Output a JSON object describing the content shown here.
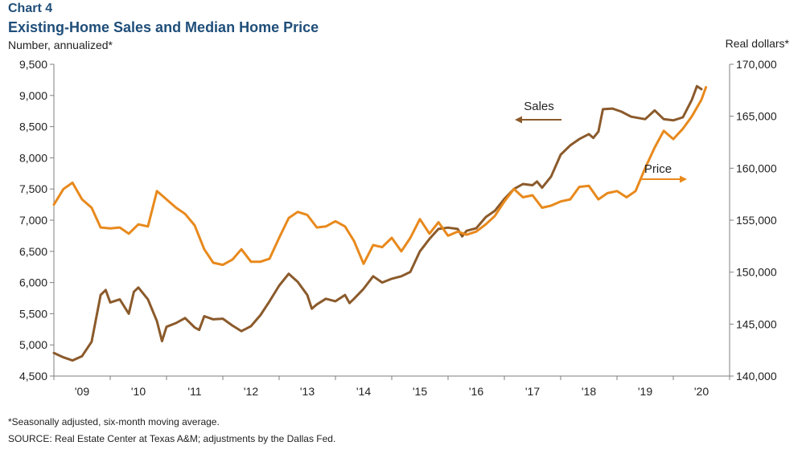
{
  "header": {
    "label": "Chart 4",
    "title": "Existing-Home Sales and Median Home Price"
  },
  "footnote": "*Seasonally adjusted, six-month moving average.",
  "source": "SOURCE: Real Estate Center at Texas A&M; adjustments by the Dallas Fed.",
  "colors": {
    "sales": "#8b5a2b",
    "price": "#e8891c",
    "axis": "#7f7f7f"
  },
  "chart_data": {
    "type": "line",
    "title": "Existing-Home Sales and Median Home Price",
    "y_left_label": "Number, annualized*",
    "y_right_label": "Real dollars*",
    "y_left_range": [
      4500,
      9500
    ],
    "y_left_ticks": [
      4500,
      5000,
      5500,
      6000,
      6500,
      7000,
      7500,
      8000,
      8500,
      9000,
      9500
    ],
    "y_left_tick_labels": [
      "4,500",
      "5,000",
      "5,500",
      "6,000",
      "6,500",
      "7,000",
      "7,500",
      "8,000",
      "8,500",
      "9,000",
      "9,500"
    ],
    "y_right_range": [
      140000,
      170000
    ],
    "y_right_ticks": [
      140000,
      145000,
      150000,
      155000,
      160000,
      165000,
      170000
    ],
    "y_right_tick_labels": [
      "140,000",
      "145,000",
      "150,000",
      "155,000",
      "160,000",
      "165,000",
      "170,000"
    ],
    "x_range": [
      2008.5,
      2020.5
    ],
    "x_tick_labels": [
      "'09",
      "'10",
      "'11",
      "'12",
      "'13",
      "'14",
      "'15",
      "'16",
      "'17",
      "'18",
      "'19",
      "'20"
    ],
    "grid": false,
    "series": [
      {
        "name": "Sales",
        "axis": "left",
        "annotation": "Sales",
        "points": [
          [
            2008.5,
            4870
          ],
          [
            2008.67,
            4800
          ],
          [
            2008.83,
            4750
          ],
          [
            2009.0,
            4820
          ],
          [
            2009.17,
            5050
          ],
          [
            2009.33,
            5800
          ],
          [
            2009.42,
            5880
          ],
          [
            2009.5,
            5680
          ],
          [
            2009.67,
            5730
          ],
          [
            2009.83,
            5500
          ],
          [
            2009.92,
            5850
          ],
          [
            2010.0,
            5920
          ],
          [
            2010.17,
            5730
          ],
          [
            2010.33,
            5380
          ],
          [
            2010.42,
            5060
          ],
          [
            2010.5,
            5290
          ],
          [
            2010.67,
            5350
          ],
          [
            2010.83,
            5430
          ],
          [
            2011.0,
            5280
          ],
          [
            2011.08,
            5240
          ],
          [
            2011.17,
            5460
          ],
          [
            2011.33,
            5410
          ],
          [
            2011.5,
            5420
          ],
          [
            2011.67,
            5310
          ],
          [
            2011.83,
            5220
          ],
          [
            2012.0,
            5300
          ],
          [
            2012.17,
            5480
          ],
          [
            2012.33,
            5700
          ],
          [
            2012.5,
            5950
          ],
          [
            2012.67,
            6140
          ],
          [
            2012.83,
            6010
          ],
          [
            2013.0,
            5800
          ],
          [
            2013.08,
            5580
          ],
          [
            2013.17,
            5650
          ],
          [
            2013.33,
            5740
          ],
          [
            2013.5,
            5700
          ],
          [
            2013.67,
            5800
          ],
          [
            2013.75,
            5670
          ],
          [
            2013.83,
            5740
          ],
          [
            2014.0,
            5900
          ],
          [
            2014.17,
            6100
          ],
          [
            2014.33,
            6000
          ],
          [
            2014.5,
            6060
          ],
          [
            2014.67,
            6100
          ],
          [
            2014.83,
            6170
          ],
          [
            2015.0,
            6500
          ],
          [
            2015.17,
            6700
          ],
          [
            2015.33,
            6860
          ],
          [
            2015.5,
            6880
          ],
          [
            2015.67,
            6860
          ],
          [
            2015.75,
            6740
          ],
          [
            2015.83,
            6830
          ],
          [
            2016.0,
            6870
          ],
          [
            2016.17,
            7050
          ],
          [
            2016.33,
            7150
          ],
          [
            2016.5,
            7340
          ],
          [
            2016.67,
            7500
          ],
          [
            2016.83,
            7580
          ],
          [
            2017.0,
            7560
          ],
          [
            2017.08,
            7620
          ],
          [
            2017.17,
            7520
          ],
          [
            2017.33,
            7700
          ],
          [
            2017.5,
            8050
          ],
          [
            2017.67,
            8200
          ],
          [
            2017.83,
            8300
          ],
          [
            2018.0,
            8380
          ],
          [
            2018.08,
            8320
          ],
          [
            2018.17,
            8420
          ],
          [
            2018.25,
            8780
          ],
          [
            2018.42,
            8790
          ],
          [
            2018.58,
            8740
          ],
          [
            2018.75,
            8660
          ],
          [
            2019.0,
            8620
          ],
          [
            2019.17,
            8760
          ],
          [
            2019.33,
            8620
          ],
          [
            2019.5,
            8600
          ],
          [
            2019.67,
            8650
          ],
          [
            2019.83,
            8930
          ],
          [
            2019.92,
            9150
          ],
          [
            2020.0,
            9100
          ]
        ]
      },
      {
        "name": "Price",
        "axis": "right",
        "annotation": "Price",
        "points": [
          [
            2008.5,
            156500
          ],
          [
            2008.67,
            158000
          ],
          [
            2008.83,
            158600
          ],
          [
            2009.0,
            157000
          ],
          [
            2009.17,
            156200
          ],
          [
            2009.33,
            154300
          ],
          [
            2009.5,
            154200
          ],
          [
            2009.67,
            154300
          ],
          [
            2009.83,
            153700
          ],
          [
            2010.0,
            154600
          ],
          [
            2010.17,
            154400
          ],
          [
            2010.33,
            157800
          ],
          [
            2010.5,
            157000
          ],
          [
            2010.67,
            156200
          ],
          [
            2010.83,
            155600
          ],
          [
            2011.0,
            154500
          ],
          [
            2011.17,
            152200
          ],
          [
            2011.33,
            150900
          ],
          [
            2011.5,
            150700
          ],
          [
            2011.67,
            151200
          ],
          [
            2011.83,
            152200
          ],
          [
            2012.0,
            151000
          ],
          [
            2012.17,
            151000
          ],
          [
            2012.33,
            151300
          ],
          [
            2012.5,
            153300
          ],
          [
            2012.67,
            155200
          ],
          [
            2012.83,
            155800
          ],
          [
            2013.0,
            155500
          ],
          [
            2013.17,
            154300
          ],
          [
            2013.33,
            154400
          ],
          [
            2013.5,
            154900
          ],
          [
            2013.67,
            154400
          ],
          [
            2013.83,
            153000
          ],
          [
            2014.0,
            150800
          ],
          [
            2014.17,
            152600
          ],
          [
            2014.33,
            152400
          ],
          [
            2014.5,
            153300
          ],
          [
            2014.67,
            152000
          ],
          [
            2014.83,
            153300
          ],
          [
            2015.0,
            155100
          ],
          [
            2015.17,
            153700
          ],
          [
            2015.33,
            154800
          ],
          [
            2015.5,
            153500
          ],
          [
            2015.67,
            153900
          ],
          [
            2015.83,
            153600
          ],
          [
            2016.0,
            153900
          ],
          [
            2016.17,
            154600
          ],
          [
            2016.33,
            155400
          ],
          [
            2016.5,
            156800
          ],
          [
            2016.67,
            158000
          ],
          [
            2016.83,
            157200
          ],
          [
            2017.0,
            157400
          ],
          [
            2017.17,
            156200
          ],
          [
            2017.33,
            156400
          ],
          [
            2017.5,
            156800
          ],
          [
            2017.67,
            157000
          ],
          [
            2017.83,
            158200
          ],
          [
            2018.0,
            158300
          ],
          [
            2018.17,
            157000
          ],
          [
            2018.33,
            157600
          ],
          [
            2018.5,
            157800
          ],
          [
            2018.67,
            157200
          ],
          [
            2018.83,
            157800
          ],
          [
            2019.0,
            160000
          ],
          [
            2019.17,
            162000
          ],
          [
            2019.33,
            163600
          ],
          [
            2019.5,
            162800
          ],
          [
            2019.67,
            163800
          ],
          [
            2019.83,
            165000
          ],
          [
            2020.0,
            166600
          ],
          [
            2020.08,
            167800
          ]
        ]
      }
    ]
  }
}
